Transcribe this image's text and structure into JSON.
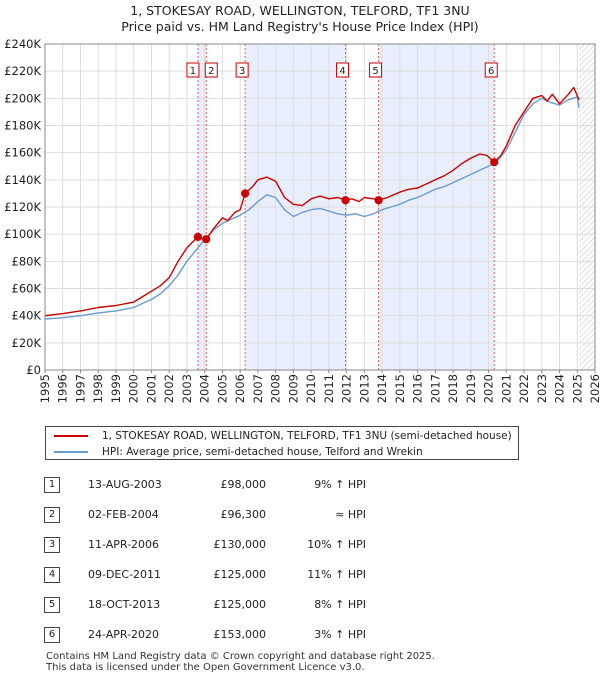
{
  "chart_data": {
    "type": "line",
    "title": "1, STOKESAY ROAD, WELLINGTON, TELFORD, TF1 3NU",
    "subtitle": "Price paid vs. HM Land Registry's House Price Index (HPI)",
    "xlim": [
      1995,
      2026
    ],
    "ylim": [
      0,
      240000
    ],
    "x_ticks": [
      1995,
      1996,
      1997,
      1998,
      1999,
      2000,
      2001,
      2002,
      2003,
      2004,
      2005,
      2006,
      2007,
      2008,
      2009,
      2010,
      2011,
      2012,
      2013,
      2014,
      2015,
      2016,
      2017,
      2018,
      2019,
      2020,
      2021,
      2022,
      2023,
      2024,
      2025,
      2026
    ],
    "y_ticks": [
      {
        "v": 0,
        "label": "£0"
      },
      {
        "v": 20000,
        "label": "£20K"
      },
      {
        "v": 40000,
        "label": "£40K"
      },
      {
        "v": 60000,
        "label": "£60K"
      },
      {
        "v": 80000,
        "label": "£80K"
      },
      {
        "v": 100000,
        "label": "£100K"
      },
      {
        "v": 120000,
        "label": "£120K"
      },
      {
        "v": 140000,
        "label": "£140K"
      },
      {
        "v": 160000,
        "label": "£160K"
      },
      {
        "v": 180000,
        "label": "£180K"
      },
      {
        "v": 200000,
        "label": "£200K"
      },
      {
        "v": 220000,
        "label": "£220K"
      },
      {
        "v": 240000,
        "label": "£240K"
      }
    ],
    "grid": true,
    "shaded_ranges": [
      [
        2003.62,
        2004.09
      ],
      [
        2006.28,
        2011.94
      ],
      [
        2013.8,
        2020.32
      ]
    ],
    "future_hatch_from": 2025.1,
    "series": [
      {
        "name": "1, STOKESAY ROAD, WELLINGTON, TELFORD, TF1 3NU (semi-detached house)",
        "color": "#cc0000",
        "x": [
          1995,
          1996,
          1997,
          1998,
          1999,
          2000,
          2000.5,
          2001,
          2001.5,
          2002,
          2002.5,
          2003,
          2003.3,
          2003.62,
          2003.8,
          2004.09,
          2004.5,
          2005,
          2005.3,
          2005.7,
          2006,
          2006.28,
          2006.7,
          2007,
          2007.5,
          2008,
          2008.5,
          2009,
          2009.5,
          2010,
          2010.5,
          2011,
          2011.5,
          2011.94,
          2012.3,
          2012.7,
          2013,
          2013.5,
          2013.8,
          2014.3,
          2015,
          2015.5,
          2016,
          2016.5,
          2017,
          2017.5,
          2018,
          2018.5,
          2019,
          2019.5,
          2019.9,
          2020.32,
          2020.7,
          2021,
          2021.5,
          2022,
          2022.5,
          2023,
          2023.3,
          2023.6,
          2024,
          2024.5,
          2024.8,
          2025.1
        ],
        "values": [
          40000,
          41500,
          43500,
          46000,
          47500,
          50000,
          54000,
          58000,
          62000,
          68000,
          80000,
          90000,
          94000,
          98000,
          97000,
          96300,
          104000,
          112000,
          110000,
          116000,
          118000,
          130000,
          135000,
          140000,
          142000,
          139000,
          127000,
          122000,
          121000,
          126000,
          128000,
          126000,
          127000,
          125000,
          126000,
          124000,
          127000,
          126000,
          125000,
          127000,
          131000,
          133000,
          134000,
          137000,
          140000,
          143000,
          147000,
          152000,
          156000,
          159000,
          158000,
          153000,
          158000,
          165000,
          180000,
          190000,
          200000,
          202000,
          198000,
          203000,
          196000,
          203000,
          208000,
          199000
        ]
      },
      {
        "name": "HPI: Average price, semi-detached house, Telford and Wrekin",
        "color": "#6a9bd1",
        "x": [
          1995,
          1996,
          1997,
          1998,
          1999,
          2000,
          2000.5,
          2001,
          2001.5,
          2002,
          2002.5,
          2003,
          2003.5,
          2004,
          2004.5,
          2005,
          2005.5,
          2006,
          2006.5,
          2007,
          2007.5,
          2008,
          2008.5,
          2009,
          2009.5,
          2010,
          2010.5,
          2011,
          2011.5,
          2012,
          2012.5,
          2013,
          2013.5,
          2014,
          2014.5,
          2015,
          2015.5,
          2016,
          2016.5,
          2017,
          2017.5,
          2018,
          2018.5,
          2019,
          2019.5,
          2020,
          2020.5,
          2021,
          2021.5,
          2022,
          2022.5,
          2023,
          2023.5,
          2024,
          2024.5,
          2025,
          2025.1
        ],
        "values": [
          37500,
          38500,
          40000,
          42000,
          43500,
          46000,
          49000,
          52000,
          56000,
          62000,
          70000,
          80000,
          88000,
          96000,
          103000,
          108000,
          111000,
          114000,
          118000,
          124000,
          129000,
          127000,
          118000,
          113000,
          116000,
          118000,
          119000,
          117000,
          115000,
          114000,
          115000,
          113000,
          115000,
          118000,
          120000,
          122000,
          125000,
          127000,
          130000,
          133000,
          135000,
          138000,
          141000,
          144000,
          147000,
          150000,
          154000,
          162000,
          175000,
          188000,
          196000,
          200000,
          197000,
          195000,
          199000,
          201000,
          193000
        ]
      }
    ],
    "sales": [
      {
        "n": "1",
        "date": "13-AUG-2003",
        "x": 2003.62,
        "price": 98000,
        "price_label": "£98,000",
        "hpi": "9% ↑ HPI"
      },
      {
        "n": "2",
        "date": "02-FEB-2004",
        "x": 2004.09,
        "price": 96300,
        "price_label": "£96,300",
        "hpi": "≈ HPI"
      },
      {
        "n": "3",
        "date": "11-APR-2006",
        "x": 2006.28,
        "price": 130000,
        "price_label": "£130,000",
        "hpi": "10% ↑ HPI"
      },
      {
        "n": "4",
        "date": "09-DEC-2011",
        "x": 2011.94,
        "price": 125000,
        "price_label": "£125,000",
        "hpi": "11% ↑ HPI"
      },
      {
        "n": "5",
        "date": "18-OCT-2013",
        "x": 2013.8,
        "price": 125000,
        "price_label": "£125,000",
        "hpi": "8% ↑ HPI"
      },
      {
        "n": "6",
        "date": "24-APR-2020",
        "x": 2020.32,
        "price": 153000,
        "price_label": "£153,000",
        "hpi": "3% ↑ HPI"
      }
    ]
  },
  "legend": {
    "property_label": "1, STOKESAY ROAD, WELLINGTON, TELFORD, TF1 3NU (semi-detached house)",
    "hpi_label": "HPI: Average price, semi-detached house, Telford and Wrekin"
  },
  "footer": {
    "line1": "Contains HM Land Registry data © Crown copyright and database right 2025.",
    "line2": "This data is licensed under the Open Government Licence v3.0."
  }
}
